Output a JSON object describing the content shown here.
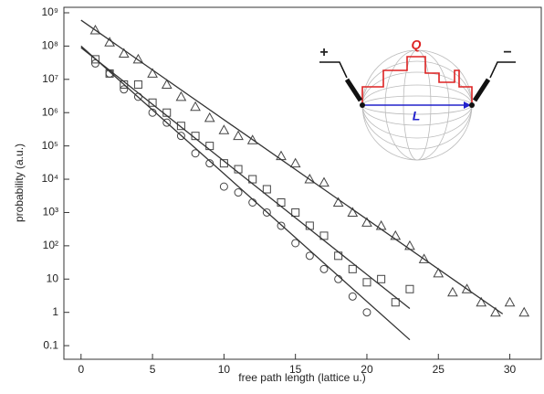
{
  "chart_data": {
    "type": "scatter",
    "xlabel": "free path length (lattice u.)",
    "ylabel": "probability (a.u.)",
    "xlim": [
      -1.2,
      32.2
    ],
    "xticks": [
      0,
      5,
      10,
      15,
      20,
      25,
      30
    ],
    "ylim": [
      0.039,
      1460000000
    ],
    "yscale": "log",
    "yticks": [
      {
        "value": 1000000000,
        "label": "10⁹"
      },
      {
        "value": 100000000,
        "label": "10⁸"
      },
      {
        "value": 10000000,
        "label": "10⁷"
      },
      {
        "value": 1000000,
        "label": "10⁶"
      },
      {
        "value": 100000,
        "label": "10⁵"
      },
      {
        "value": 10000,
        "label": "10⁴"
      },
      {
        "value": 1000,
        "label": "10³"
      },
      {
        "value": 100,
        "label": "10²"
      },
      10,
      1,
      0.1
    ],
    "series": [
      {
        "mode": "markers",
        "marker": "triangle",
        "color": "#444",
        "x": [
          1,
          2,
          3,
          4,
          5,
          6,
          7,
          8,
          9,
          10,
          11,
          12,
          14,
          15,
          16,
          17,
          18,
          19,
          20,
          21,
          22,
          23,
          24,
          25,
          26,
          27,
          28,
          29,
          30,
          31
        ],
        "values": [
          300000000,
          130000000,
          60000000,
          40000000,
          15000000,
          7000000,
          3000000,
          1500000,
          700000,
          300000,
          200000,
          150000,
          50000,
          30000,
          10000,
          8000,
          2000,
          1000,
          500,
          400,
          200,
          100,
          40,
          15,
          4,
          5,
          2,
          1,
          2,
          1
        ]
      },
      {
        "mode": "markers",
        "marker": "square",
        "color": "#444",
        "x": [
          1,
          2,
          3,
          4,
          5,
          6,
          7,
          8,
          9,
          10,
          11,
          12,
          13,
          14,
          15,
          16,
          17,
          18,
          19,
          20,
          21,
          22,
          23
        ],
        "values": [
          40000000,
          15000000,
          7000000,
          7000000,
          2000000,
          1000000,
          400000,
          200000,
          100000,
          30000,
          20000,
          10000,
          5000,
          2000,
          1000,
          400,
          200,
          50,
          20,
          8,
          10,
          2,
          5
        ]
      },
      {
        "mode": "markers",
        "marker": "circle",
        "color": "#444",
        "x": [
          1,
          2,
          3,
          4,
          5,
          6,
          7,
          8,
          9,
          10,
          11,
          12,
          13,
          14,
          15,
          16,
          17,
          18,
          19,
          20
        ],
        "values": [
          30000000,
          15000000,
          5000000,
          3000000,
          1000000,
          500000,
          200000,
          60000,
          30000,
          6000,
          4000,
          2000,
          1000,
          400,
          120,
          50,
          20,
          10,
          3,
          1
        ]
      },
      {
        "mode": "line",
        "color": "#333",
        "x": [
          0,
          29.5
        ],
        "values": [
          600000000,
          0.9
        ]
      },
      {
        "mode": "line",
        "color": "#333",
        "x": [
          0,
          23
        ],
        "values": [
          90000000,
          1.3
        ]
      },
      {
        "mode": "line",
        "color": "#333",
        "x": [
          0,
          23
        ],
        "values": [
          100000000,
          0.15
        ]
      }
    ],
    "annotations": {
      "plus": "+",
      "minus": "−",
      "charge": "Q",
      "length": "L"
    }
  }
}
